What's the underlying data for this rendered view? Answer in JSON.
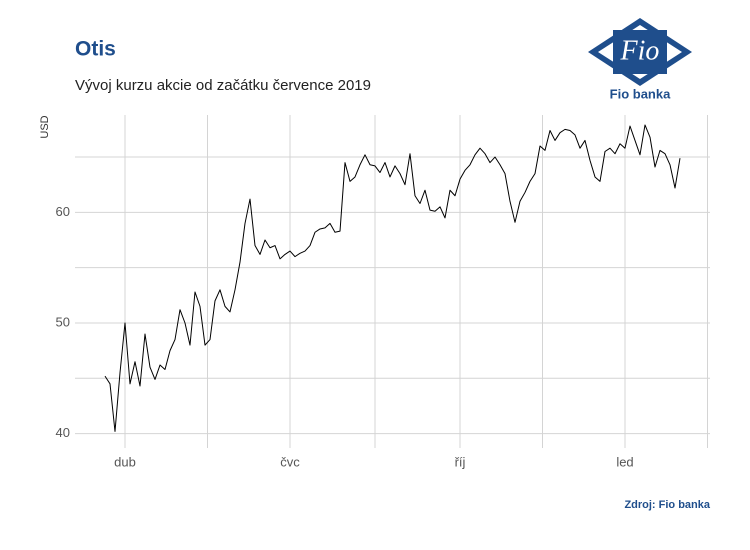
{
  "chart_data": {
    "type": "line",
    "title": "Otis",
    "subtitle": "Vývoj kurzu akcie od začátku července 2019",
    "y_label": "USD",
    "source": "Zdroj: Fio banka",
    "logo_text": "Fio",
    "logo_caption": "Fio banka",
    "categories": [
      null,
      null,
      null,
      null,
      "dub",
      null,
      null,
      null,
      null,
      null,
      null,
      null,
      null,
      null,
      null,
      null,
      null,
      null,
      null,
      null,
      null,
      null,
      null,
      null,
      null,
      null,
      null,
      null,
      null,
      null,
      null,
      null,
      null,
      null,
      null,
      null,
      null,
      "čvc",
      null,
      null,
      null,
      null,
      null,
      null,
      null,
      null,
      null,
      null,
      null,
      null,
      null,
      null,
      null,
      null,
      null,
      null,
      null,
      null,
      null,
      null,
      null,
      null,
      null,
      null,
      null,
      null,
      null,
      null,
      null,
      null,
      null,
      "říj",
      null,
      null,
      null,
      null,
      null,
      null,
      null,
      null,
      null,
      null,
      null,
      null,
      null,
      null,
      null,
      null,
      null,
      null,
      null,
      null,
      null,
      null,
      null,
      null,
      null,
      null,
      null,
      null,
      null,
      null,
      null,
      null,
      "led",
      null,
      null,
      null,
      null,
      null,
      null,
      null,
      null,
      null,
      null,
      null
    ],
    "series": [
      {
        "name": "Otis",
        "color": "#000000",
        "values": [
          45.2,
          44.5,
          40.2,
          45.5,
          50,
          44.5,
          46.5,
          44.3,
          49,
          46,
          44.9,
          46.2,
          45.8,
          47.5,
          48.5,
          51.2,
          50,
          48,
          52.8,
          51.5,
          48,
          48.5,
          52,
          53,
          51.5,
          51,
          53,
          55.5,
          59,
          61.2,
          57,
          56.2,
          57.5,
          56.8,
          57,
          55.8,
          56.2,
          56.5,
          56,
          56.3,
          56.5,
          57,
          58.2,
          58.5,
          58.6,
          59,
          58.2,
          58.3,
          64.5,
          62.8,
          63.2,
          64.3,
          65.2,
          64.3,
          64.2,
          63.6,
          64.5,
          63.2,
          64.2,
          63.5,
          62.5,
          65.3,
          61.5,
          60.8,
          62,
          60.2,
          60.1,
          60.5,
          59.5,
          62,
          61.5,
          63,
          63.8,
          64.3,
          65.2,
          65.8,
          65.3,
          64.5,
          65,
          64.3,
          63.5,
          61,
          59.1,
          61,
          61.8,
          62.8,
          63.5,
          66,
          65.6,
          67.4,
          66.5,
          67.2,
          67.5,
          67.4,
          67,
          65.8,
          66.5,
          64.7,
          63.2,
          62.8,
          65.5,
          65.8,
          65.3,
          66.2,
          65.8,
          67.8,
          66.5,
          65.2,
          67.9,
          66.8,
          64.1,
          65.6,
          65.3,
          64.3,
          62.2,
          64.9
        ]
      }
    ],
    "ylim": [
      38.7,
      68.8
    ],
    "yticks": [
      40,
      50,
      60
    ],
    "y_minor_ticks": [
      45,
      55,
      65
    ],
    "grid": true
  }
}
